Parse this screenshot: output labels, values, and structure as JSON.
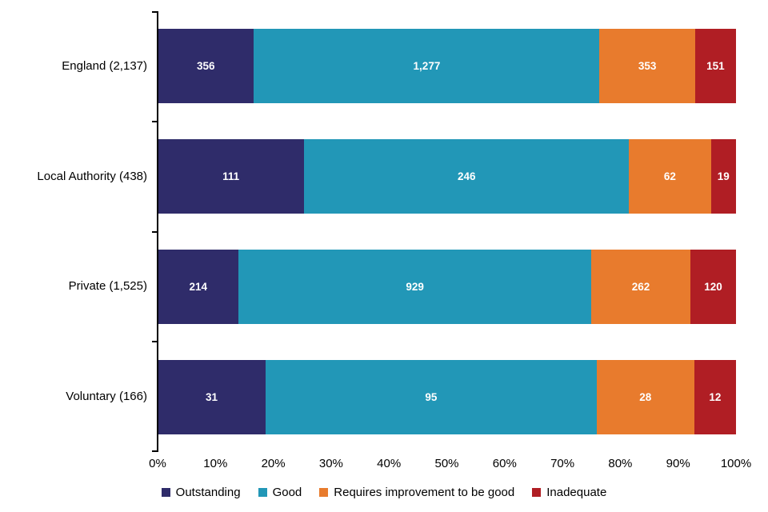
{
  "chart_data": {
    "type": "bar",
    "orientation": "horizontal",
    "stacked": true,
    "percent_axis": true,
    "title": "",
    "xlabel": "",
    "ylabel": "",
    "categories": [
      "England (2,137)",
      "Local Authority (438)",
      "Private (1,525)",
      "Voluntary (166)"
    ],
    "category_totals": [
      2137,
      438,
      1525,
      166
    ],
    "series": [
      {
        "name": "Outstanding",
        "color": "#2f2c6a",
        "values": [
          356,
          111,
          214,
          31
        ],
        "value_labels": [
          "356",
          "111",
          "214",
          "31"
        ]
      },
      {
        "name": "Good",
        "color": "#2297b7",
        "values": [
          1277,
          246,
          929,
          95
        ],
        "value_labels": [
          "1,277",
          "246",
          "929",
          "95"
        ]
      },
      {
        "name": "Requires improvement to be good",
        "color": "#e87b2d",
        "values": [
          353,
          62,
          262,
          28
        ],
        "value_labels": [
          "353",
          "62",
          "262",
          "28"
        ]
      },
      {
        "name": "Inadequate",
        "color": "#b01e24",
        "values": [
          151,
          19,
          120,
          12
        ],
        "value_labels": [
          "151",
          "19",
          "120",
          "12"
        ]
      }
    ],
    "x_ticks": [
      "0%",
      "10%",
      "20%",
      "30%",
      "40%",
      "50%",
      "60%",
      "70%",
      "80%",
      "90%",
      "100%"
    ],
    "xlim": [
      0,
      100
    ],
    "grid": false,
    "legend_position": "bottom"
  }
}
